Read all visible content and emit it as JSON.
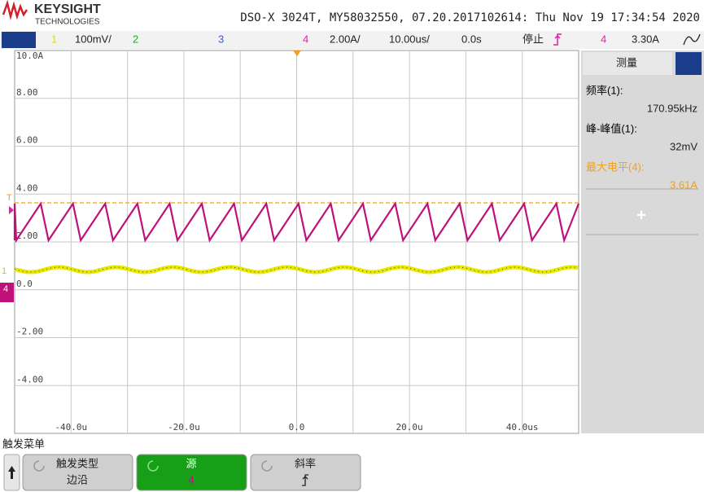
{
  "header": {
    "brand": "KEYSIGHT",
    "brand_sub": "TECHNOLOGIES",
    "title": "DSO-X 3024T, MY58032550, 07.20.2017102614: Thu Nov 19 17:34:54 2020"
  },
  "status_bar": {
    "ch1": "1",
    "ch1_scale": "100mV/",
    "ch2": "2",
    "ch3": "3",
    "ch4": "4",
    "ch4_scale": "2.00A/",
    "time_scale": "10.00us/",
    "delay": "0.0s",
    "run_state": "停止",
    "trigger_source": "4",
    "trigger_level": "3.30A"
  },
  "screen": {
    "y_labels": [
      "10.0A",
      "8.00",
      "6.00",
      "4.00",
      "2.00",
      "0.0",
      "-2.00",
      "-4.00"
    ],
    "x_labels": [
      "-40.0u",
      "-20.0u",
      "0.0",
      "20.0u",
      "40.0us"
    ],
    "markers": {
      "trigger": "T",
      "ch1": "1",
      "ch4": "4"
    }
  },
  "measurements": {
    "title": "测量",
    "items": [
      {
        "label": "频率(1):",
        "value": "170.95kHz",
        "color": "#000000"
      },
      {
        "label": "峰-峰值(1):",
        "value": "32mV",
        "color": "#000000"
      },
      {
        "label": "最大电平(4):",
        "value": "3.61A",
        "color": "#f0a020"
      }
    ],
    "add": "+"
  },
  "softkeys": {
    "menu_title": "触发菜单",
    "keys": [
      {
        "label": "触发类型",
        "value": "边沿"
      },
      {
        "label": "源",
        "value": "4"
      },
      {
        "label": "斜率"
      }
    ]
  }
}
